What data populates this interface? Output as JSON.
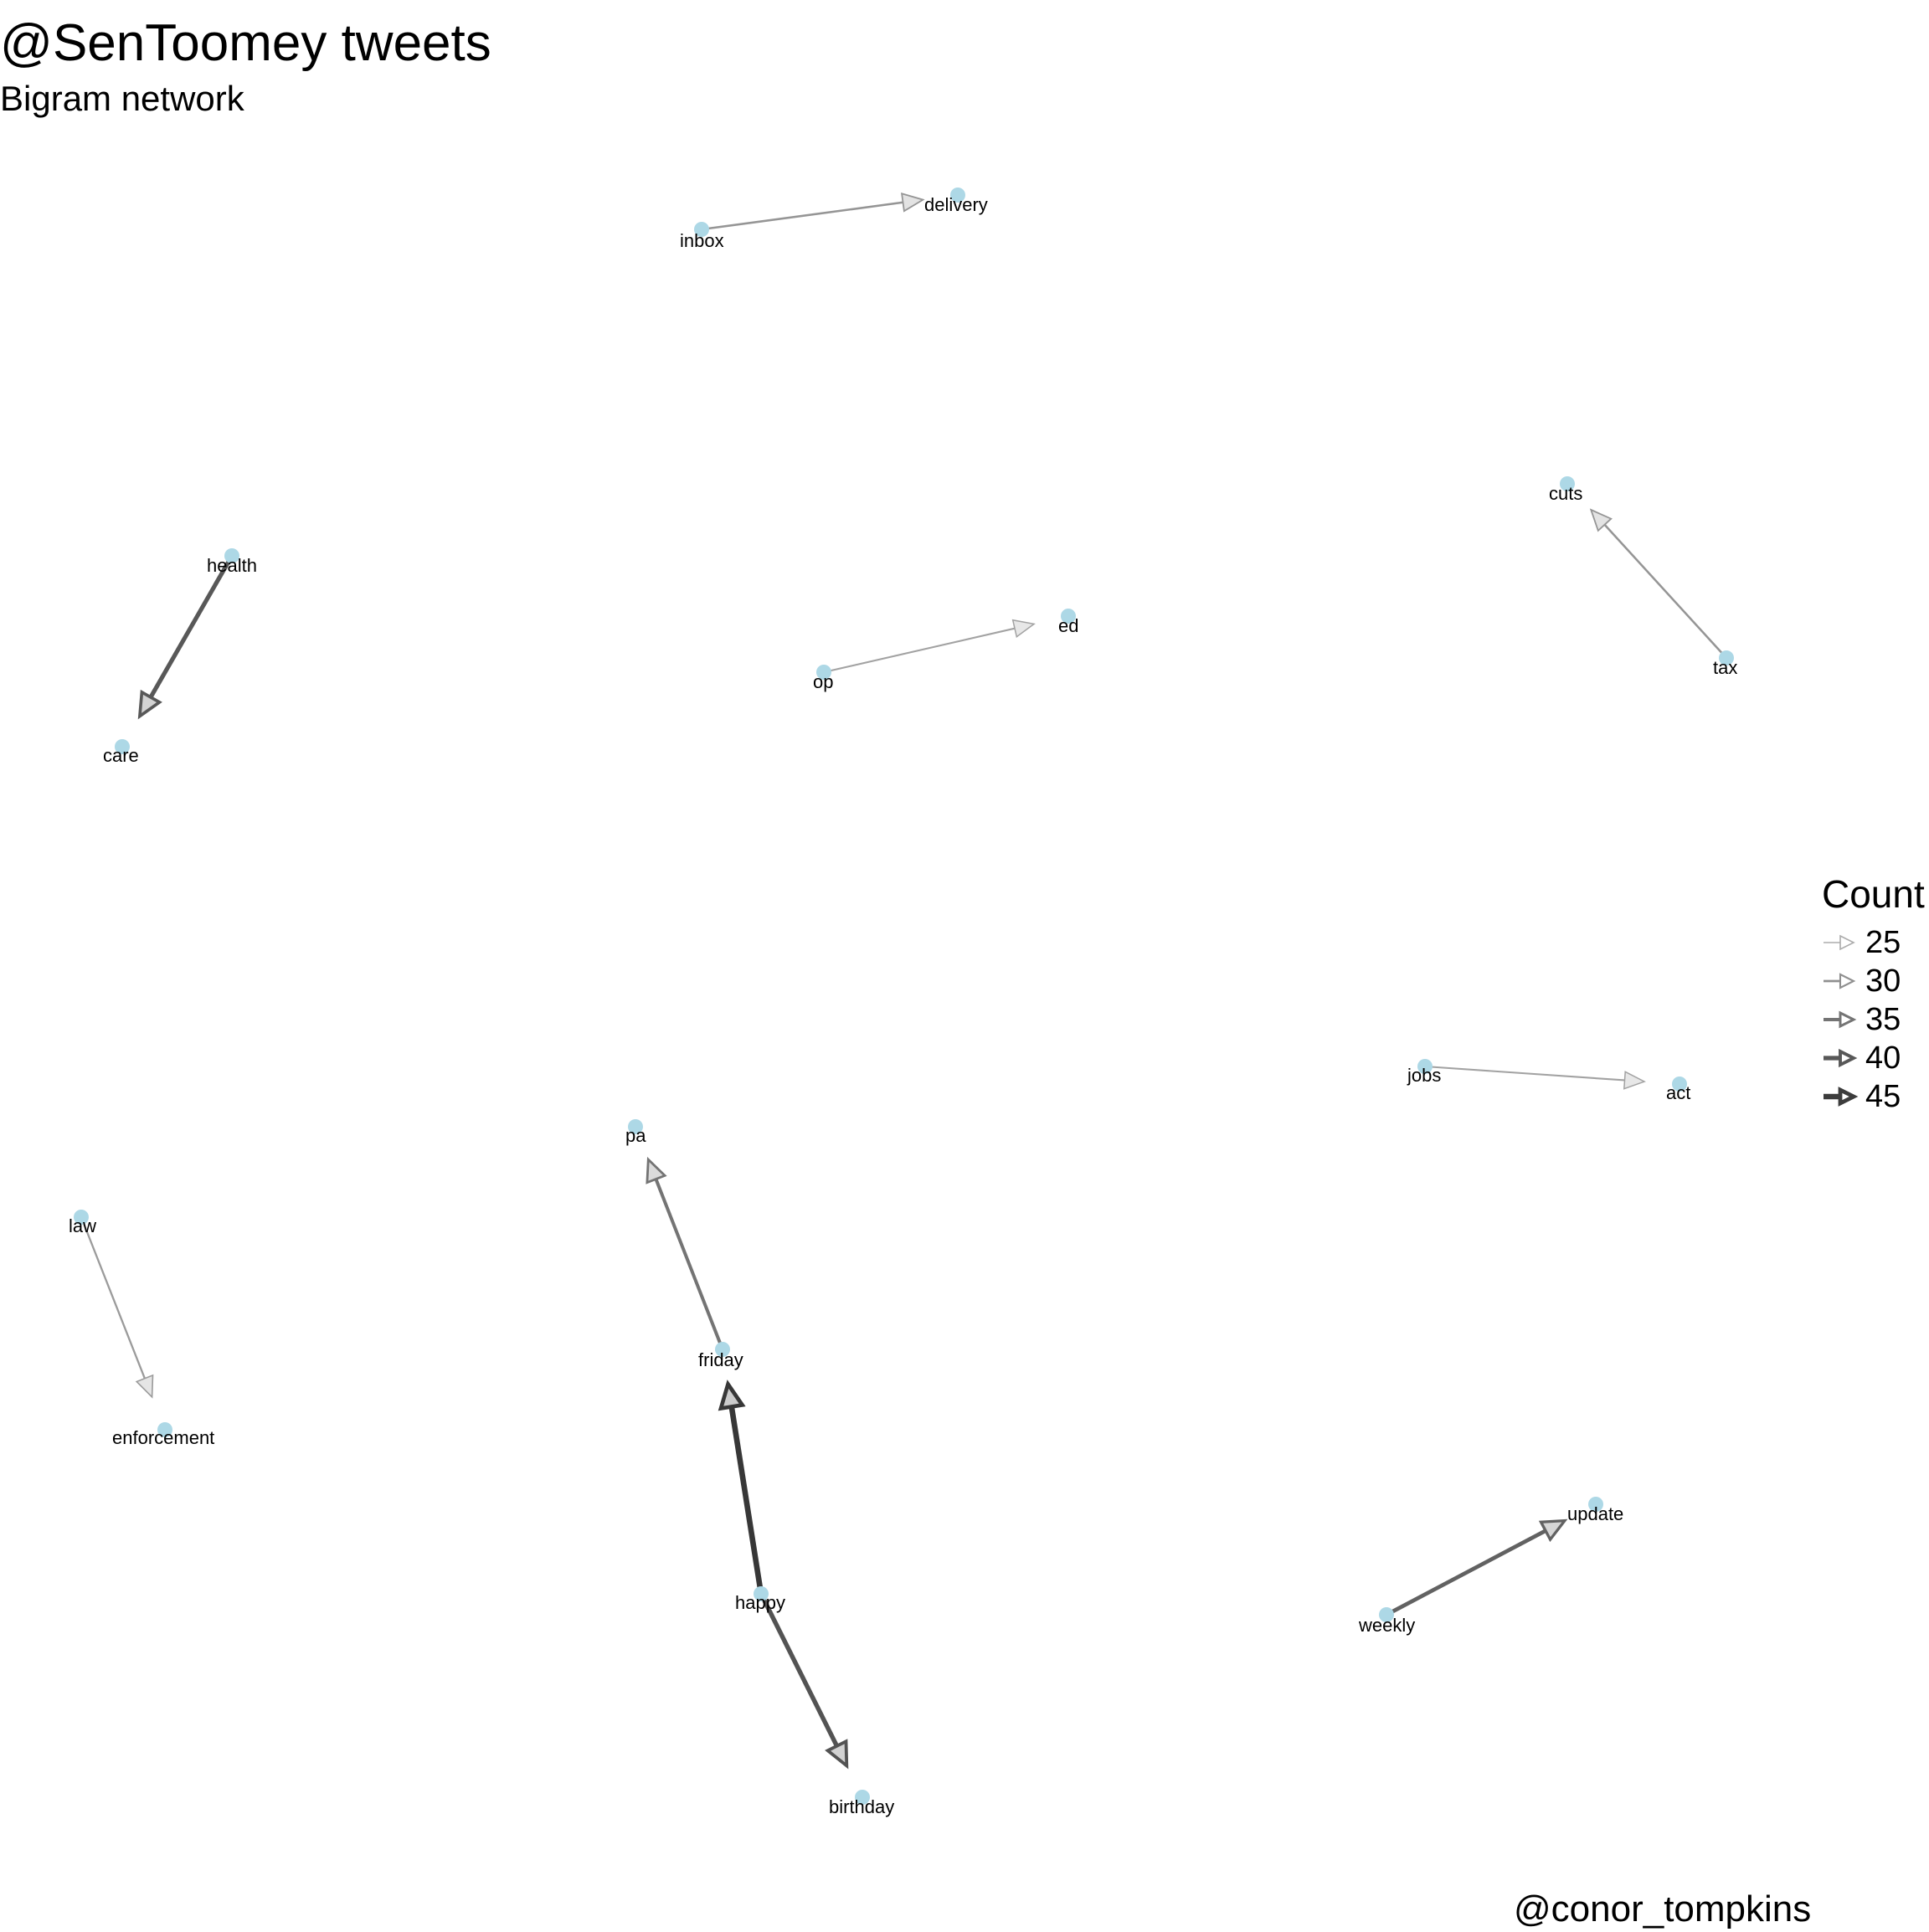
{
  "title": "@SenToomey tweets",
  "subtitle": "Bigram network",
  "caption": "@conor_tompkins",
  "colors": {
    "node": "#add8e6",
    "edge": "#000000",
    "background": "#ffffff"
  },
  "legend": {
    "title": "Count",
    "items": [
      {
        "label": "25",
        "value": 25
      },
      {
        "label": "30",
        "value": 30
      },
      {
        "label": "35",
        "value": 35
      },
      {
        "label": "40",
        "value": 40
      },
      {
        "label": "45",
        "value": 45
      }
    ]
  },
  "nodes": [
    {
      "id": "inbox",
      "label": "inbox"
    },
    {
      "id": "delivery",
      "label": "delivery"
    },
    {
      "id": "cuts",
      "label": "cuts"
    },
    {
      "id": "tax",
      "label": "tax"
    },
    {
      "id": "health",
      "label": "health"
    },
    {
      "id": "care",
      "label": "care"
    },
    {
      "id": "op",
      "label": "op"
    },
    {
      "id": "ed",
      "label": "ed"
    },
    {
      "id": "jobs",
      "label": "jobs"
    },
    {
      "id": "act",
      "label": "act"
    },
    {
      "id": "pa",
      "label": "pa"
    },
    {
      "id": "friday",
      "label": "friday"
    },
    {
      "id": "law",
      "label": "law"
    },
    {
      "id": "enforcement",
      "label": "enforcement"
    },
    {
      "id": "happy",
      "label": "happy"
    },
    {
      "id": "birthday",
      "label": "birthday"
    },
    {
      "id": "weekly",
      "label": "weekly"
    },
    {
      "id": "update",
      "label": "update"
    }
  ],
  "edges": [
    {
      "from": "inbox",
      "to": "delivery",
      "count": 29
    },
    {
      "from": "tax",
      "to": "cuts",
      "count": 29
    },
    {
      "from": "health",
      "to": "care",
      "count": 40
    },
    {
      "from": "op",
      "to": "ed",
      "count": 27
    },
    {
      "from": "jobs",
      "to": "act",
      "count": 27
    },
    {
      "from": "friday",
      "to": "pa",
      "count": 35
    },
    {
      "from": "law",
      "to": "enforcement",
      "count": 28
    },
    {
      "from": "happy",
      "to": "friday",
      "count": 46
    },
    {
      "from": "happy",
      "to": "birthday",
      "count": 41
    },
    {
      "from": "weekly",
      "to": "update",
      "count": 38
    }
  ]
}
